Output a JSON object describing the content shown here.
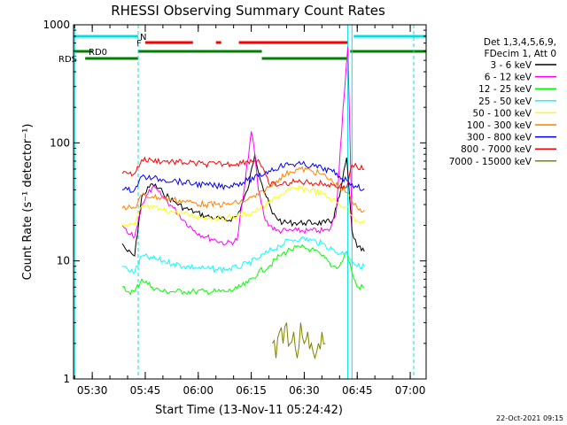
{
  "chart_data": {
    "type": "line",
    "title": "RHESSI Observing Summary Count Rates",
    "xlabel": "Start Time (13-Nov-11 05:24:42)",
    "ylabel": "Count Rate (s⁻¹ detector⁻¹)",
    "yscale": "log",
    "xlim": [
      "05:24:42",
      "07:04:30"
    ],
    "ylim": [
      1,
      1000
    ],
    "x_ticks": [
      "05:30",
      "05:45",
      "06:00",
      "06:15",
      "06:30",
      "06:45",
      "07:00"
    ],
    "y_ticks": [
      "1",
      "10",
      "100",
      "1000"
    ],
    "legend_header": [
      "Det 1,3,4,5,6,9,",
      "FDecim 1, Att 0"
    ],
    "legend_position": "right",
    "footer_date": "22-Oct-2021 09:15",
    "flags": [
      {
        "label": "N",
        "color": "#00e0e0",
        "segments": [
          [
            "05:24:42",
            "05:43:00"
          ],
          [
            "06:44:00",
            "07:04:30"
          ]
        ]
      },
      {
        "label": "F",
        "color": "#ff0000",
        "segments": [
          [
            "05:45:00",
            "05:58:30"
          ],
          [
            "06:05:00",
            "06:06:30"
          ],
          [
            "06:11:30",
            "06:42:30"
          ]
        ]
      },
      {
        "label": "RD0",
        "color": "#008000",
        "segments": [
          [
            "05:24:42",
            "05:30:00"
          ],
          [
            "05:43:00",
            "06:18:00"
          ],
          [
            "06:43:00",
            "07:04:30"
          ]
        ]
      },
      {
        "label": "RDS",
        "color": "#008000",
        "segments": [
          [
            "05:28:00",
            "05:43:00"
          ],
          [
            "06:18:00",
            "06:42:00"
          ]
        ]
      }
    ],
    "vlines": [
      {
        "time": "05:43:00",
        "color": "#00e0e0",
        "style": "dashed"
      },
      {
        "time": "06:42:20",
        "color": "#00e0e0",
        "style": "solid"
      },
      {
        "time": "06:43:30",
        "color": "#00e0e0",
        "style": "solid"
      },
      {
        "time": "07:01:00",
        "color": "#00e0e0",
        "style": "dashed"
      },
      {
        "time": "05:25:00",
        "color": "#00e0e0",
        "style": "solid"
      }
    ],
    "series": [
      {
        "name": "3 - 6 keV",
        "color": "#000000",
        "x": [
          "05:38:30",
          "05:40",
          "05:42",
          "05:44",
          "05:47",
          "05:50",
          "05:53",
          "05:56",
          "05:59",
          "06:02",
          "06:05",
          "06:08",
          "06:11",
          "06:14",
          "06:16",
          "06:18",
          "06:21",
          "06:24",
          "06:27",
          "06:30",
          "06:33",
          "06:36",
          "06:38",
          "06:40",
          "06:42",
          "06:43:30",
          "06:45",
          "06:47"
        ],
        "y": [
          14,
          12,
          11,
          35,
          45,
          38,
          32,
          28,
          26,
          24,
          23,
          22,
          24,
          40,
          80,
          45,
          25,
          21,
          21,
          21,
          21,
          21,
          22,
          35,
          75,
          18,
          13,
          12
        ]
      },
      {
        "name": "6 - 12 keV",
        "color": "#ff00ff",
        "x": [
          "05:38:30",
          "05:40",
          "05:42",
          "05:44",
          "05:47",
          "05:50",
          "05:53",
          "05:56",
          "05:59",
          "06:02",
          "06:05",
          "06:08",
          "06:11",
          "06:13",
          "06:15",
          "06:16",
          "06:17",
          "06:19",
          "06:22",
          "06:25",
          "06:28",
          "06:31",
          "06:34",
          "06:37",
          "06:39",
          "06:41",
          "06:42:20",
          "06:43:30"
        ],
        "y": [
          20,
          17,
          16,
          30,
          42,
          35,
          28,
          22,
          18,
          16,
          15,
          14,
          15,
          40,
          125,
          80,
          40,
          22,
          18,
          18,
          18,
          18,
          18,
          18,
          25,
          200,
          650,
          20
        ]
      },
      {
        "name": "12 - 25 keV",
        "color": "#00ff00",
        "x": [
          "05:38:30",
          "05:40",
          "05:42",
          "05:44",
          "05:47",
          "05:50",
          "05:53",
          "05:56",
          "05:59",
          "06:02",
          "06:05",
          "06:08",
          "06:11",
          "06:14",
          "06:17",
          "06:20",
          "06:23",
          "06:26",
          "06:29",
          "06:32",
          "06:35",
          "06:38",
          "06:40",
          "06:42",
          "06:43:30",
          "06:45",
          "06:47"
        ],
        "y": [
          6,
          5.5,
          5.5,
          7,
          6,
          5.5,
          5.5,
          5.5,
          5.5,
          5.5,
          5.5,
          5.5,
          5.8,
          6.5,
          8,
          9,
          11,
          12.5,
          13,
          12.5,
          11,
          9,
          9,
          12,
          8,
          6,
          6
        ]
      },
      {
        "name": "25 - 50 keV",
        "color": "#00ffff",
        "x": [
          "05:38:30",
          "05:40",
          "05:42",
          "05:44",
          "05:47",
          "05:50",
          "05:53",
          "05:56",
          "05:59",
          "06:02",
          "06:05",
          "06:08",
          "06:11",
          "06:14",
          "06:17",
          "06:20",
          "06:23",
          "06:26",
          "06:29",
          "06:32",
          "06:35",
          "06:38",
          "06:40",
          "06:42",
          "06:43:30",
          "06:45",
          "06:47"
        ],
        "y": [
          9,
          8.5,
          8,
          11,
          10.5,
          10,
          9.5,
          9,
          8.8,
          8.6,
          8.5,
          8.5,
          8.8,
          9.5,
          10.5,
          12,
          13.5,
          15,
          15.5,
          15,
          14,
          12.5,
          11.5,
          12,
          10,
          9,
          9
        ]
      },
      {
        "name": "50 - 100 keV",
        "color": "#ffff00",
        "x": [
          "05:38:30",
          "05:40",
          "05:42",
          "05:44",
          "05:47",
          "05:50",
          "05:53",
          "05:56",
          "05:59",
          "06:02",
          "06:05",
          "06:08",
          "06:11",
          "06:14",
          "06:17",
          "06:20",
          "06:23",
          "06:26",
          "06:29",
          "06:32",
          "06:35",
          "06:38",
          "06:40",
          "06:42",
          "06:43:30",
          "06:45",
          "06:47"
        ],
        "y": [
          20,
          20,
          20,
          29,
          28,
          27,
          26,
          25,
          24,
          23.5,
          23,
          23,
          24,
          25,
          27,
          31,
          36,
          40,
          41,
          40,
          37,
          33,
          30,
          29,
          24,
          22,
          22
        ]
      },
      {
        "name": "100 - 300 keV",
        "color": "#ff8000",
        "x": [
          "05:38:30",
          "05:40",
          "05:42",
          "05:44",
          "05:47",
          "05:50",
          "05:53",
          "05:56",
          "05:59",
          "06:02",
          "06:05",
          "06:08",
          "06:11",
          "06:14",
          "06:17",
          "06:20",
          "06:23",
          "06:26",
          "06:29",
          "06:32",
          "06:35",
          "06:38",
          "06:40",
          "06:42",
          "06:43:30",
          "06:45",
          "06:47"
        ],
        "y": [
          28,
          28,
          28,
          36,
          35,
          34,
          33,
          32,
          31,
          30,
          30,
          30,
          31,
          33,
          36,
          42,
          50,
          57,
          60,
          58,
          54,
          47,
          42,
          38,
          32,
          28,
          27
        ]
      },
      {
        "name": "300 - 800 keV",
        "color": "#0000ff",
        "x": [
          "05:38:30",
          "05:40",
          "05:42",
          "05:44",
          "05:47",
          "05:50",
          "05:53",
          "05:56",
          "05:59",
          "06:02",
          "06:05",
          "06:08",
          "06:11",
          "06:14",
          "06:17",
          "06:20",
          "06:23",
          "06:26",
          "06:29",
          "06:32",
          "06:35",
          "06:38",
          "06:40",
          "06:42",
          "06:43:30",
          "06:45",
          "06:47"
        ],
        "y": [
          40,
          40,
          40,
          52,
          50,
          49,
          48,
          46,
          45,
          44,
          43,
          43,
          45,
          48,
          52,
          58,
          63,
          66,
          66,
          64,
          61,
          57,
          52,
          48,
          45,
          42,
          41
        ]
      },
      {
        "name": "800 - 7000 keV",
        "color": "#ff0000",
        "x": [
          "05:38:30",
          "05:40",
          "05:42",
          "05:44",
          "05:47",
          "05:50",
          "05:53",
          "05:56",
          "05:59",
          "06:02",
          "06:05",
          "06:08",
          "06:11",
          "06:14",
          "06:17",
          "06:20",
          "06:23",
          "06:26",
          "06:29",
          "06:32",
          "06:35",
          "06:38",
          "06:40",
          "06:42",
          "06:43:30",
          "06:45",
          "06:47"
        ],
        "y": [
          55,
          55,
          55,
          72,
          71,
          70,
          69,
          68,
          67,
          66,
          66,
          66,
          67,
          70,
          72,
          45,
          44,
          46,
          47,
          46,
          45,
          44,
          43,
          42,
          65,
          62,
          60
        ]
      },
      {
        "name": "7000 - 15000 keV",
        "color": "#808000",
        "x": [
          "06:21",
          "06:22",
          "06:23",
          "06:24",
          "06:25",
          "06:26",
          "06:27",
          "06:28",
          "06:29",
          "06:30",
          "06:31",
          "06:32",
          "06:33",
          "06:34",
          "06:35",
          "06:36"
        ],
        "y": [
          2,
          1.5,
          2.5,
          2,
          3,
          2,
          2.5,
          1.5,
          3,
          2,
          2.5,
          2,
          1.5,
          2,
          2.5,
          2
        ]
      }
    ]
  }
}
